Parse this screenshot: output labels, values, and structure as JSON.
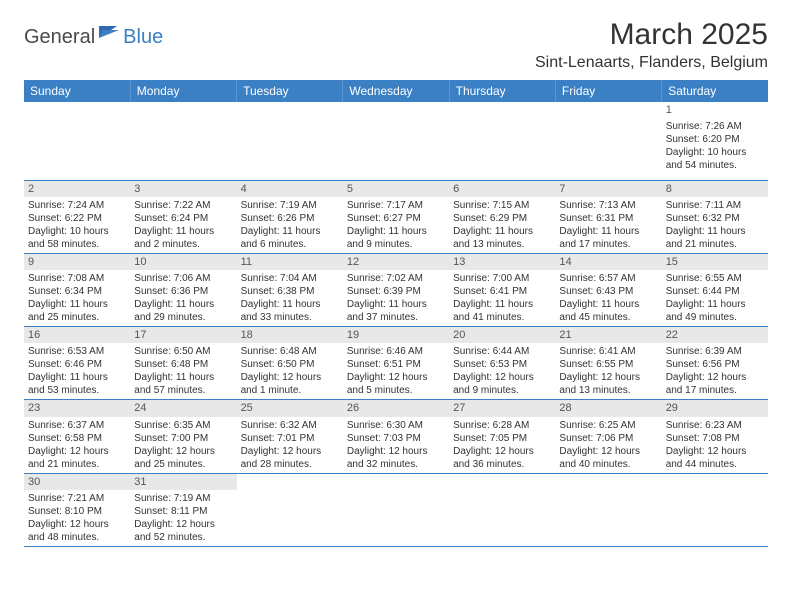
{
  "logo": {
    "text1": "General",
    "text2": "Blue"
  },
  "title": "March 2025",
  "location": "Sint-Lenaarts, Flanders, Belgium",
  "theme": {
    "header_bg": "#3b7fc4",
    "header_fg": "#ffffff",
    "border": "#3b7fc4",
    "daynum_bg": "#e8e8e8",
    "text": "#333333"
  },
  "weekdays": [
    "Sunday",
    "Monday",
    "Tuesday",
    "Wednesday",
    "Thursday",
    "Friday",
    "Saturday"
  ],
  "weeks": [
    [
      null,
      null,
      null,
      null,
      null,
      null,
      {
        "d": "1",
        "sr": "7:26 AM",
        "ss": "6:20 PM",
        "dl": "10 hours and 54 minutes."
      }
    ],
    [
      {
        "d": "2",
        "sr": "7:24 AM",
        "ss": "6:22 PM",
        "dl": "10 hours and 58 minutes."
      },
      {
        "d": "3",
        "sr": "7:22 AM",
        "ss": "6:24 PM",
        "dl": "11 hours and 2 minutes."
      },
      {
        "d": "4",
        "sr": "7:19 AM",
        "ss": "6:26 PM",
        "dl": "11 hours and 6 minutes."
      },
      {
        "d": "5",
        "sr": "7:17 AM",
        "ss": "6:27 PM",
        "dl": "11 hours and 9 minutes."
      },
      {
        "d": "6",
        "sr": "7:15 AM",
        "ss": "6:29 PM",
        "dl": "11 hours and 13 minutes."
      },
      {
        "d": "7",
        "sr": "7:13 AM",
        "ss": "6:31 PM",
        "dl": "11 hours and 17 minutes."
      },
      {
        "d": "8",
        "sr": "7:11 AM",
        "ss": "6:32 PM",
        "dl": "11 hours and 21 minutes."
      }
    ],
    [
      {
        "d": "9",
        "sr": "7:08 AM",
        "ss": "6:34 PM",
        "dl": "11 hours and 25 minutes."
      },
      {
        "d": "10",
        "sr": "7:06 AM",
        "ss": "6:36 PM",
        "dl": "11 hours and 29 minutes."
      },
      {
        "d": "11",
        "sr": "7:04 AM",
        "ss": "6:38 PM",
        "dl": "11 hours and 33 minutes."
      },
      {
        "d": "12",
        "sr": "7:02 AM",
        "ss": "6:39 PM",
        "dl": "11 hours and 37 minutes."
      },
      {
        "d": "13",
        "sr": "7:00 AM",
        "ss": "6:41 PM",
        "dl": "11 hours and 41 minutes."
      },
      {
        "d": "14",
        "sr": "6:57 AM",
        "ss": "6:43 PM",
        "dl": "11 hours and 45 minutes."
      },
      {
        "d": "15",
        "sr": "6:55 AM",
        "ss": "6:44 PM",
        "dl": "11 hours and 49 minutes."
      }
    ],
    [
      {
        "d": "16",
        "sr": "6:53 AM",
        "ss": "6:46 PM",
        "dl": "11 hours and 53 minutes."
      },
      {
        "d": "17",
        "sr": "6:50 AM",
        "ss": "6:48 PM",
        "dl": "11 hours and 57 minutes."
      },
      {
        "d": "18",
        "sr": "6:48 AM",
        "ss": "6:50 PM",
        "dl": "12 hours and 1 minute."
      },
      {
        "d": "19",
        "sr": "6:46 AM",
        "ss": "6:51 PM",
        "dl": "12 hours and 5 minutes."
      },
      {
        "d": "20",
        "sr": "6:44 AM",
        "ss": "6:53 PM",
        "dl": "12 hours and 9 minutes."
      },
      {
        "d": "21",
        "sr": "6:41 AM",
        "ss": "6:55 PM",
        "dl": "12 hours and 13 minutes."
      },
      {
        "d": "22",
        "sr": "6:39 AM",
        "ss": "6:56 PM",
        "dl": "12 hours and 17 minutes."
      }
    ],
    [
      {
        "d": "23",
        "sr": "6:37 AM",
        "ss": "6:58 PM",
        "dl": "12 hours and 21 minutes."
      },
      {
        "d": "24",
        "sr": "6:35 AM",
        "ss": "7:00 PM",
        "dl": "12 hours and 25 minutes."
      },
      {
        "d": "25",
        "sr": "6:32 AM",
        "ss": "7:01 PM",
        "dl": "12 hours and 28 minutes."
      },
      {
        "d": "26",
        "sr": "6:30 AM",
        "ss": "7:03 PM",
        "dl": "12 hours and 32 minutes."
      },
      {
        "d": "27",
        "sr": "6:28 AM",
        "ss": "7:05 PM",
        "dl": "12 hours and 36 minutes."
      },
      {
        "d": "28",
        "sr": "6:25 AM",
        "ss": "7:06 PM",
        "dl": "12 hours and 40 minutes."
      },
      {
        "d": "29",
        "sr": "6:23 AM",
        "ss": "7:08 PM",
        "dl": "12 hours and 44 minutes."
      }
    ],
    [
      {
        "d": "30",
        "sr": "7:21 AM",
        "ss": "8:10 PM",
        "dl": "12 hours and 48 minutes."
      },
      {
        "d": "31",
        "sr": "7:19 AM",
        "ss": "8:11 PM",
        "dl": "12 hours and 52 minutes."
      },
      null,
      null,
      null,
      null,
      null
    ]
  ],
  "labels": {
    "sunrise": "Sunrise:",
    "sunset": "Sunset:",
    "daylight": "Daylight:"
  }
}
